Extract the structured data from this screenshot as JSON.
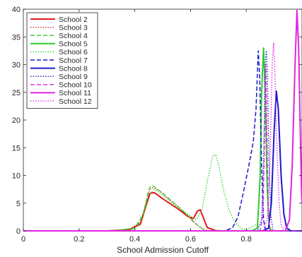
{
  "chart_data": {
    "type": "line",
    "title": "",
    "xlabel": "School Admission Cutoff",
    "ylabel": "",
    "xlim": [
      0,
      1
    ],
    "ylim": [
      0,
      40
    ],
    "grid": false,
    "legend_position": "top-left",
    "x_ticks": [
      "0",
      "0.2",
      "0.4",
      "0.6",
      "0.8"
    ],
    "y_ticks": [
      "0",
      "5",
      "10",
      "15",
      "20",
      "25",
      "30",
      "35",
      "40"
    ],
    "series": [
      {
        "name": "School 2",
        "color": "#e41a1c",
        "dash": "solid",
        "width": 2,
        "points": [
          [
            0,
            0
          ],
          [
            0.3,
            0
          ],
          [
            0.38,
            0.2
          ],
          [
            0.42,
            1.2
          ],
          [
            0.44,
            4.5
          ],
          [
            0.455,
            6.8
          ],
          [
            0.47,
            6.9
          ],
          [
            0.5,
            5.8
          ],
          [
            0.53,
            4.8
          ],
          [
            0.56,
            3.8
          ],
          [
            0.59,
            2.6
          ],
          [
            0.61,
            2.2
          ],
          [
            0.625,
            3.6
          ],
          [
            0.635,
            3.8
          ],
          [
            0.645,
            2.5
          ],
          [
            0.66,
            0.6
          ],
          [
            0.69,
            0.05
          ],
          [
            0.72,
            0
          ],
          [
            1,
            0
          ]
        ]
      },
      {
        "name": "School 3",
        "color": "#e41a1c",
        "dash": "dot",
        "width": 1.3,
        "points": [
          [
            0,
            0
          ],
          [
            0.3,
            0
          ],
          [
            0.38,
            0.3
          ],
          [
            0.42,
            1.5
          ],
          [
            0.44,
            5
          ],
          [
            0.455,
            7.5
          ],
          [
            0.465,
            7.8
          ],
          [
            0.49,
            7.2
          ],
          [
            0.52,
            5.8
          ],
          [
            0.55,
            4.6
          ],
          [
            0.58,
            3.2
          ],
          [
            0.61,
            1.8
          ],
          [
            0.63,
            0.8
          ],
          [
            0.65,
            0.2
          ],
          [
            0.67,
            0
          ],
          [
            1,
            0
          ]
        ]
      },
      {
        "name": "School 4",
        "color": "#2ecc2e",
        "dash": "dash",
        "width": 1.3,
        "points": [
          [
            0,
            0
          ],
          [
            0.32,
            0
          ],
          [
            0.4,
            0.5
          ],
          [
            0.43,
            3
          ],
          [
            0.45,
            7.5
          ],
          [
            0.46,
            8.2
          ],
          [
            0.47,
            8.0
          ],
          [
            0.5,
            6.8
          ],
          [
            0.53,
            5.5
          ],
          [
            0.56,
            4.2
          ],
          [
            0.59,
            2.8
          ],
          [
            0.61,
            1.6
          ],
          [
            0.63,
            0.8
          ],
          [
            0.65,
            0.2
          ],
          [
            0.67,
            0
          ],
          [
            1,
            0
          ]
        ]
      },
      {
        "name": "School 5",
        "color": "#2ecc2e",
        "dash": "solid",
        "width": 2,
        "points": [
          [
            0,
            0
          ],
          [
            0.82,
            0
          ],
          [
            0.84,
            0.5
          ],
          [
            0.85,
            10
          ],
          [
            0.855,
            25
          ],
          [
            0.862,
            33
          ],
          [
            0.868,
            25
          ],
          [
            0.875,
            8
          ],
          [
            0.882,
            1
          ],
          [
            0.89,
            0
          ],
          [
            1,
            0
          ]
        ]
      },
      {
        "name": "School 6",
        "color": "#2ecc2e",
        "dash": "dot",
        "width": 1.3,
        "points": [
          [
            0,
            0
          ],
          [
            0.3,
            0
          ],
          [
            0.4,
            0.3
          ],
          [
            0.43,
            2.5
          ],
          [
            0.45,
            6.5
          ],
          [
            0.47,
            7.5
          ],
          [
            0.5,
            6.5
          ],
          [
            0.53,
            5.2
          ],
          [
            0.56,
            4
          ],
          [
            0.59,
            3
          ],
          [
            0.62,
            2
          ],
          [
            0.64,
            3.5
          ],
          [
            0.66,
            9
          ],
          [
            0.68,
            13.5
          ],
          [
            0.69,
            13.8
          ],
          [
            0.7,
            12
          ],
          [
            0.72,
            7
          ],
          [
            0.74,
            3.5
          ],
          [
            0.76,
            1.5
          ],
          [
            0.78,
            0.5
          ],
          [
            0.8,
            0.2
          ],
          [
            0.82,
            0.8
          ],
          [
            0.84,
            1.2
          ],
          [
            0.85,
            0.3
          ],
          [
            0.86,
            0
          ],
          [
            1,
            0
          ]
        ]
      },
      {
        "name": "School 7",
        "color": "#1a1acc",
        "dash": "dash",
        "width": 1.5,
        "points": [
          [
            0,
            0
          ],
          [
            0.72,
            0
          ],
          [
            0.75,
            0.5
          ],
          [
            0.77,
            2.5
          ],
          [
            0.79,
            7
          ],
          [
            0.81,
            12
          ],
          [
            0.825,
            16
          ],
          [
            0.835,
            22
          ],
          [
            0.843,
            32.5
          ],
          [
            0.848,
            28
          ],
          [
            0.855,
            12
          ],
          [
            0.862,
            2
          ],
          [
            0.87,
            0
          ],
          [
            1,
            0
          ]
        ]
      },
      {
        "name": "School 8",
        "color": "#1a1acc",
        "dash": "solid",
        "width": 2,
        "points": [
          [
            0,
            0
          ],
          [
            0.86,
            0
          ],
          [
            0.88,
            0.5
          ],
          [
            0.89,
            5
          ],
          [
            0.9,
            18
          ],
          [
            0.908,
            25.2
          ],
          [
            0.915,
            22
          ],
          [
            0.925,
            10
          ],
          [
            0.935,
            3
          ],
          [
            0.945,
            0.5
          ],
          [
            0.96,
            0
          ],
          [
            1,
            0
          ]
        ]
      },
      {
        "name": "School 9",
        "color": "#1a1acc",
        "dash": "dot",
        "width": 1.3,
        "points": [
          [
            0,
            0
          ],
          [
            0.84,
            0
          ],
          [
            0.855,
            2
          ],
          [
            0.862,
            12
          ],
          [
            0.868,
            30
          ],
          [
            0.872,
            32.5
          ],
          [
            0.876,
            28
          ],
          [
            0.882,
            12
          ],
          [
            0.888,
            3
          ],
          [
            0.895,
            0.3
          ],
          [
            0.9,
            0
          ],
          [
            1,
            0
          ]
        ]
      },
      {
        "name": "School 10",
        "color": "#e024e0",
        "dash": "dash",
        "width": 1.3,
        "points": [
          [
            0,
            0
          ],
          [
            0.85,
            0
          ],
          [
            0.86,
            3
          ],
          [
            0.865,
            15
          ],
          [
            0.87,
            30
          ],
          [
            0.875,
            15
          ],
          [
            0.88,
            3
          ],
          [
            0.885,
            0
          ],
          [
            1,
            0
          ]
        ]
      },
      {
        "name": "School 11",
        "color": "#e024e0",
        "dash": "solid",
        "width": 2,
        "points": [
          [
            0,
            0
          ],
          [
            0.94,
            0
          ],
          [
            0.955,
            2
          ],
          [
            0.965,
            12
          ],
          [
            0.975,
            30
          ],
          [
            0.982,
            39.8
          ],
          [
            0.988,
            33
          ],
          [
            0.993,
            20
          ],
          [
            0.998,
            8
          ],
          [
            1,
            5
          ]
        ]
      },
      {
        "name": "School 12",
        "color": "#e024e0",
        "dash": "dot",
        "width": 1.3,
        "points": [
          [
            0,
            0
          ],
          [
            0.86,
            0
          ],
          [
            0.875,
            2
          ],
          [
            0.885,
            12
          ],
          [
            0.893,
            30
          ],
          [
            0.898,
            34
          ],
          [
            0.903,
            28
          ],
          [
            0.91,
            15
          ],
          [
            0.918,
            5
          ],
          [
            0.925,
            1
          ],
          [
            0.935,
            0
          ],
          [
            1,
            0
          ]
        ]
      }
    ]
  }
}
